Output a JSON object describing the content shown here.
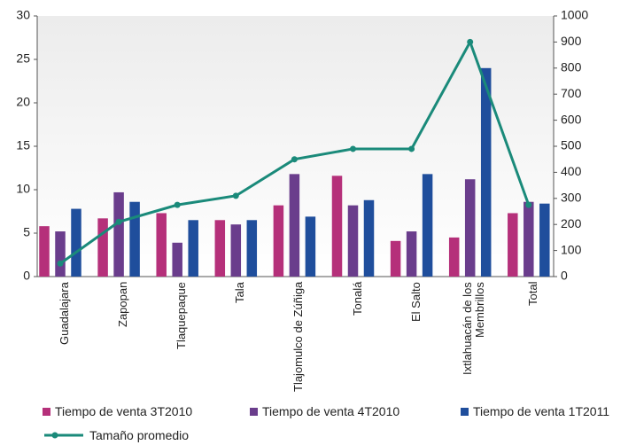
{
  "chart_data": {
    "type": "bar",
    "categories": [
      "Guadalajara",
      "Zapopan",
      "Tlaquepaque",
      "Tala",
      "Tlajomulco de Zúñiga",
      "Tonalá",
      "El Salto",
      "Ixtlahuacán de los\nMembrillos",
      "Total"
    ],
    "series": [
      {
        "name": "Tiempo de venta 3T2010",
        "color": "#b5307a",
        "values": [
          5.8,
          6.7,
          7.3,
          6.5,
          8.2,
          11.6,
          4.1,
          4.5,
          7.3
        ]
      },
      {
        "name": "Tiempo de venta 4T2010",
        "color": "#6a3d8c",
        "values": [
          5.2,
          9.7,
          3.9,
          6.0,
          11.8,
          8.2,
          5.2,
          11.2,
          8.6
        ]
      },
      {
        "name": "Tiempo de venta 1T2011",
        "color": "#1f4e9c",
        "values": [
          7.8,
          8.6,
          6.5,
          6.5,
          6.9,
          8.8,
          11.8,
          24.0,
          8.4
        ]
      },
      {
        "name": "Tamaño promedio",
        "type": "line",
        "axis": "y2",
        "color": "#1a8a7a",
        "values": [
          50,
          210,
          275,
          310,
          450,
          490,
          490,
          900,
          275
        ]
      }
    ],
    "ylim": [
      0,
      30
    ],
    "yticks": [
      0,
      5,
      10,
      15,
      20,
      25,
      30
    ],
    "y2lim": [
      0,
      1000
    ],
    "y2ticks": [
      0,
      100,
      200,
      300,
      400,
      500,
      600,
      700,
      800,
      900,
      1000
    ]
  }
}
